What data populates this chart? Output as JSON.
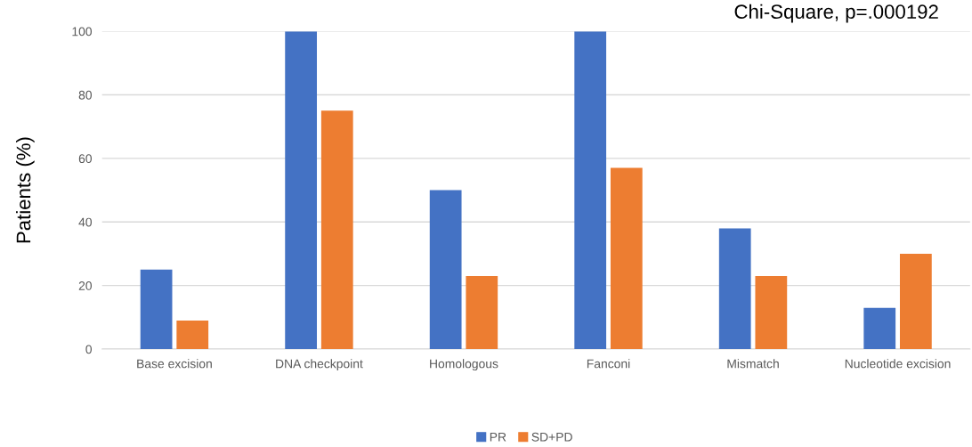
{
  "chart_data": {
    "type": "bar",
    "ylabel": "Patients (%)",
    "annotations": [
      "Chi-Square, p=.000192"
    ],
    "categories": [
      "Base excision",
      "DNA checkpoint",
      "Homologous",
      "Fanconi",
      "Mismatch",
      "Nucleotide excision"
    ],
    "series": [
      {
        "name": "PR",
        "color": "#4472c4",
        "values": [
          25,
          100,
          50,
          100,
          38,
          13
        ]
      },
      {
        "name": "SD+PD",
        "color": "#ed7d31",
        "values": [
          9,
          75,
          23,
          57,
          23,
          30
        ]
      }
    ],
    "ylim": [
      0,
      100
    ],
    "yticks": [
      0,
      20,
      40,
      60,
      80,
      100
    ],
    "grid": "y",
    "legend": "bottom"
  }
}
